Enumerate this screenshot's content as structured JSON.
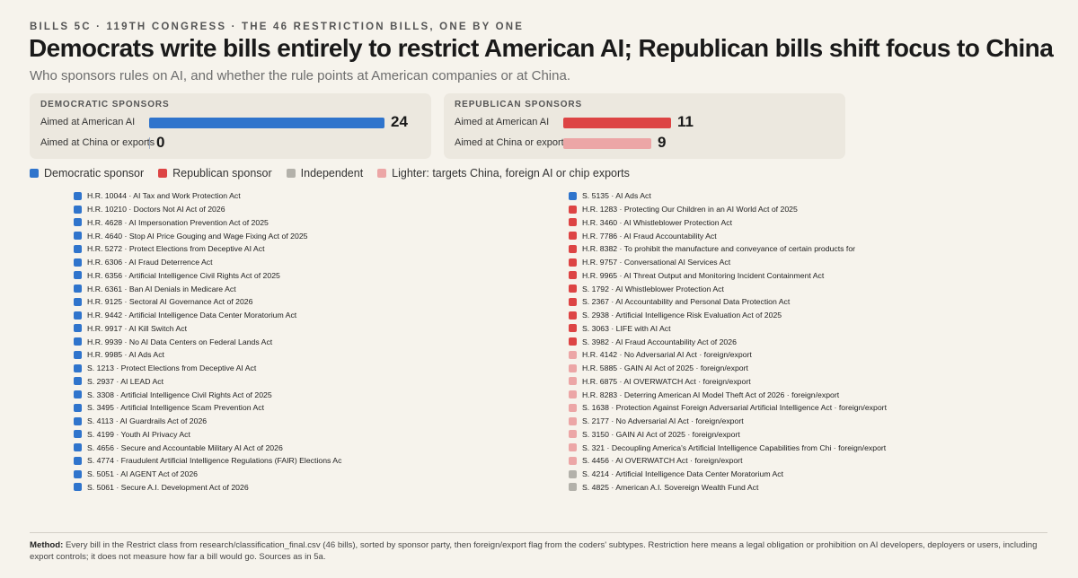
{
  "header": {
    "kicker": "BILLS 5C · 119TH CONGRESS · THE 46 RESTRICTION BILLS, ONE BY ONE",
    "title": "Democrats write bills entirely to restrict American AI; Republican bills shift focus to China",
    "subtitle": "Who sponsors rules on AI, and whether the rule points at American companies or at China."
  },
  "colors": {
    "democratic": "#2f74cc",
    "republican": "#dd4444",
    "independent": "#b3b1aa",
    "lighter": "#eca6a6"
  },
  "legend": {
    "democratic": "Democratic sponsor",
    "republican": "Republican sponsor",
    "independent": "Independent",
    "lighter": "Lighter: targets China, foreign AI or chip exports"
  },
  "chart_data": {
    "type": "bar",
    "title": "",
    "categories": [
      "Aimed at American AI",
      "Aimed at China or exports"
    ],
    "panels": [
      {
        "name": "DEMOCRATIC SPONSORS",
        "values": [
          24,
          0
        ]
      },
      {
        "name": "REPUBLICAN SPONSORS",
        "values": [
          11,
          9
        ]
      }
    ],
    "xlim": [
      0,
      24
    ]
  },
  "bills_left": [
    {
      "party": "D",
      "label": "H.R. 10044 · AI Tax and Work Protection Act"
    },
    {
      "party": "D",
      "label": "H.R. 10210 · Doctors Not AI Act of 2026"
    },
    {
      "party": "D",
      "label": "H.R. 4628 · AI Impersonation Prevention Act of 2025"
    },
    {
      "party": "D",
      "label": "H.R. 4640 · Stop AI Price Gouging and Wage Fixing Act of 2025"
    },
    {
      "party": "D",
      "label": "H.R. 5272 · Protect Elections from Deceptive AI Act"
    },
    {
      "party": "D",
      "label": "H.R. 6306 · AI Fraud Deterrence Act"
    },
    {
      "party": "D",
      "label": "H.R. 6356 · Artificial Intelligence Civil Rights Act of 2025"
    },
    {
      "party": "D",
      "label": "H.R. 6361 · Ban AI Denials in Medicare Act"
    },
    {
      "party": "D",
      "label": "H.R. 9125 · Sectoral AI Governance Act of 2026"
    },
    {
      "party": "D",
      "label": "H.R. 9442 · Artificial Intelligence Data Center Moratorium Act"
    },
    {
      "party": "D",
      "label": "H.R. 9917 · AI Kill Switch Act"
    },
    {
      "party": "D",
      "label": "H.R. 9939 · No AI Data Centers on Federal Lands Act"
    },
    {
      "party": "D",
      "label": "H.R. 9985 · AI Ads Act"
    },
    {
      "party": "D",
      "label": "S. 1213 · Protect Elections from Deceptive AI Act"
    },
    {
      "party": "D",
      "label": "S. 2937 · AI LEAD Act"
    },
    {
      "party": "D",
      "label": "S. 3308 · Artificial Intelligence Civil Rights Act of 2025"
    },
    {
      "party": "D",
      "label": "S. 3495 · Artificial Intelligence Scam Prevention Act"
    },
    {
      "party": "D",
      "label": "S. 4113 · AI Guardrails Act of 2026"
    },
    {
      "party": "D",
      "label": "S. 4199 · Youth AI Privacy Act"
    },
    {
      "party": "D",
      "label": "S. 4656 · Secure and Accountable Military AI Act of 2026"
    },
    {
      "party": "D",
      "label": "S. 4774 · Fraudulent Artificial Intelligence Regulations (FAIR) Elections Ac"
    },
    {
      "party": "D",
      "label": "S. 5051 · AI AGENT Act of 2026"
    },
    {
      "party": "D",
      "label": "S. 5061 · Secure A.I. Development Act of 2026"
    }
  ],
  "bills_right": [
    {
      "party": "D",
      "label": "S. 5135 · AI Ads Act"
    },
    {
      "party": "R",
      "label": "H.R. 1283 · Protecting Our Children in an AI World Act of 2025"
    },
    {
      "party": "R",
      "label": "H.R. 3460 · AI Whistleblower Protection Act"
    },
    {
      "party": "R",
      "label": "H.R. 7786 · AI Fraud Accountability Act"
    },
    {
      "party": "R",
      "label": "H.R. 8382 · To prohibit the manufacture and conveyance of certain products for"
    },
    {
      "party": "R",
      "label": "H.R. 9757 · Conversational AI Services Act"
    },
    {
      "party": "R",
      "label": "H.R. 9965 · AI Threat Output and Monitoring Incident Containment Act"
    },
    {
      "party": "R",
      "label": "S. 1792 · AI Whistleblower Protection Act"
    },
    {
      "party": "R",
      "label": "S. 2367 · AI Accountability and Personal Data Protection Act"
    },
    {
      "party": "R",
      "label": "S. 2938 · Artificial Intelligence Risk Evaluation Act of 2025"
    },
    {
      "party": "R",
      "label": "S. 3063 · LIFE with AI Act"
    },
    {
      "party": "R",
      "label": "S. 3982 · AI Fraud Accountability Act of 2026"
    },
    {
      "party": "RL",
      "label": "H.R. 4142 · No Adversarial AI Act · foreign/export"
    },
    {
      "party": "RL",
      "label": "H.R. 5885 · GAIN AI Act of 2025 · foreign/export"
    },
    {
      "party": "RL",
      "label": "H.R. 6875 · AI OVERWATCH Act · foreign/export"
    },
    {
      "party": "RL",
      "label": "H.R. 8283 · Deterring American AI Model Theft Act of 2026 · foreign/export"
    },
    {
      "party": "RL",
      "label": "S. 1638 · Protection Against Foreign Adversarial Artificial Intelligence Act · foreign/export"
    },
    {
      "party": "RL",
      "label": "S. 2177 · No Adversarial AI Act · foreign/export"
    },
    {
      "party": "RL",
      "label": "S. 3150 · GAIN AI Act of 2025 · foreign/export"
    },
    {
      "party": "RL",
      "label": "S. 321 · Decoupling America's Artificial Intelligence Capabilities from Chi · foreign/export"
    },
    {
      "party": "RL",
      "label": "S. 4456 · AI OVERWATCH Act · foreign/export"
    },
    {
      "party": "I",
      "label": "S. 4214 · Artificial Intelligence Data Center Moratorium Act"
    },
    {
      "party": "I",
      "label": "S. 4825 · American A.I. Sovereign Wealth Fund Act"
    }
  ],
  "method": {
    "label": "Method:",
    "text": "Every bill in the Restrict class from research/classification_final.csv (46 bills), sorted by sponsor party, then foreign/export flag from the coders' subtypes. Restriction here means a legal obligation or prohibition on AI developers, deployers or users, including export controls; it does not measure how far a bill would go. Sources as in 5a."
  }
}
